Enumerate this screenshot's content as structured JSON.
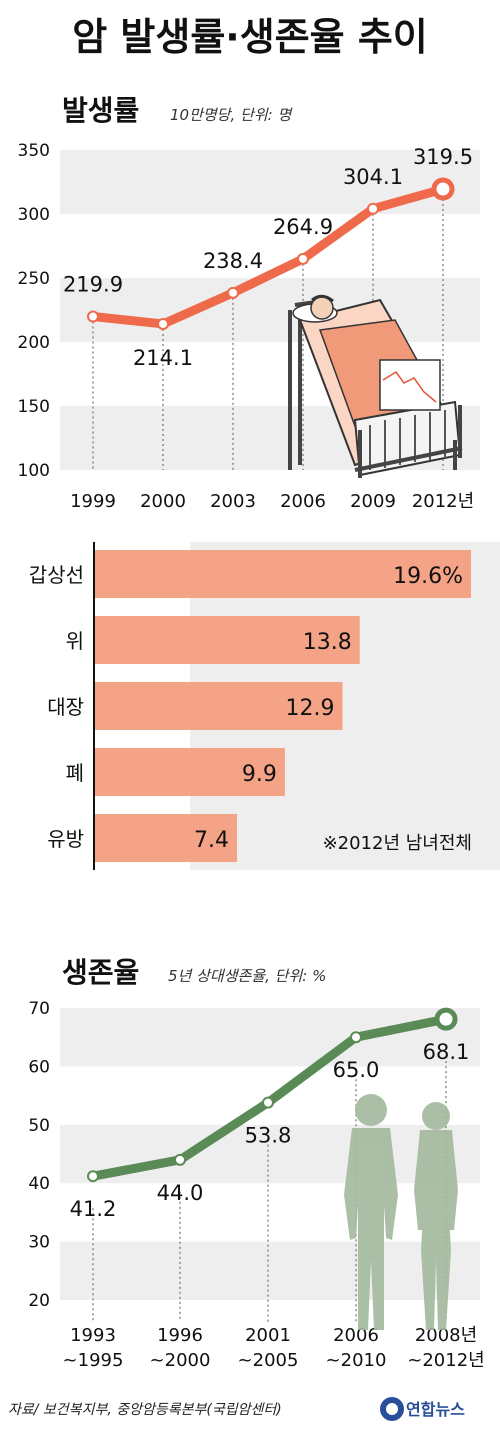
{
  "title": "암 발생률·생존율 추이",
  "colors": {
    "incidence": "#ee6a4a",
    "bars": "#f4a386",
    "survival": "#5a8a56",
    "band": "#eeeeee",
    "human": "#a3b99e"
  },
  "chart_data": [
    {
      "type": "line",
      "title": "발생률",
      "subtitle": "10만명당, 단위: 명",
      "categories": [
        "1999",
        "2000",
        "2003",
        "2006",
        "2009",
        "2012년"
      ],
      "values": [
        219.9,
        214.1,
        238.4,
        264.9,
        304.1,
        319.5
      ],
      "value_labels": [
        "219.9",
        "214.1",
        "238.4",
        "264.9",
        "304.1",
        "319.5"
      ],
      "ylim": [
        100,
        350
      ],
      "yticks": [
        "350",
        "300",
        "250",
        "200",
        "150",
        "100"
      ],
      "grid": "alternating bands"
    },
    {
      "type": "bar",
      "orientation": "horizontal",
      "categories": [
        "갑상선",
        "위",
        "대장",
        "폐",
        "유방"
      ],
      "values": [
        19.6,
        13.8,
        12.9,
        9.9,
        7.4
      ],
      "value_labels": [
        "19.6%",
        "13.8",
        "12.9",
        "9.9",
        "7.4"
      ],
      "xlim": [
        0,
        20
      ],
      "note": "※2012년 남녀전체"
    },
    {
      "type": "line",
      "title": "생존율",
      "subtitle": "5년 상대생존율, 단위: %",
      "categories": [
        [
          "1993",
          "~1995"
        ],
        [
          "1996",
          "~2000"
        ],
        [
          "2001",
          "~2005"
        ],
        [
          "2006",
          "~2010"
        ],
        [
          "2008년",
          "~2012년"
        ]
      ],
      "values": [
        41.2,
        44.0,
        53.8,
        65.0,
        68.1
      ],
      "value_labels": [
        "41.2",
        "44.0",
        "53.8",
        "65.0",
        "68.1"
      ],
      "ylim": [
        20,
        70
      ],
      "yticks": [
        "70",
        "60",
        "50",
        "40",
        "30",
        "20"
      ],
      "grid": "alternating bands"
    }
  ],
  "source": "자료/ 보건복지부, 중앙암등록본부(국립암센터)",
  "logo": "연합뉴스"
}
